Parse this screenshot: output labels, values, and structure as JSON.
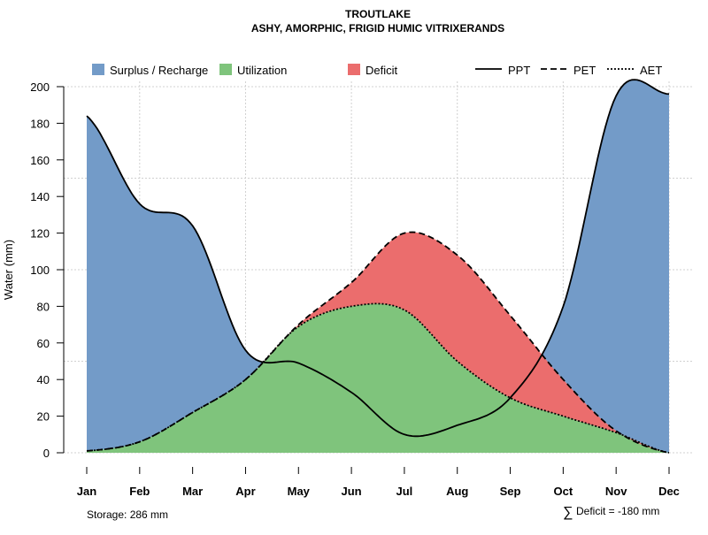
{
  "chart_data": {
    "type": "area",
    "title": "TROUTLAKE",
    "subtitle": "ASHY, AMORPHIC, FRIGID HUMIC VITRIXERANDS",
    "xlabel": "",
    "ylabel": "Water (mm)",
    "ylim": [
      0,
      200
    ],
    "yticks": [
      0,
      20,
      40,
      60,
      80,
      100,
      120,
      140,
      160,
      180,
      200
    ],
    "grid": true,
    "categories": [
      "Jan",
      "Feb",
      "Mar",
      "Apr",
      "May",
      "Jun",
      "Jul",
      "Aug",
      "Sep",
      "Oct",
      "Nov",
      "Dec"
    ],
    "series": [
      {
        "name": "PPT",
        "style": "solid",
        "values": [
          184,
          136,
          124,
          56,
          49,
          33,
          10,
          15,
          30,
          80,
          195,
          196
        ]
      },
      {
        "name": "PET",
        "style": "dashed",
        "values": [
          1,
          6,
          22,
          40,
          70,
          93,
          120,
          108,
          75,
          40,
          12,
          0
        ]
      },
      {
        "name": "AET",
        "style": "dotted",
        "values": [
          1,
          6,
          22,
          40,
          69,
          80,
          78,
          50,
          30,
          20,
          11,
          0
        ]
      }
    ],
    "legend": {
      "placement": "top",
      "fills": [
        {
          "label": "Surplus / Recharge",
          "color": "#739BC8"
        },
        {
          "label": "Utilization",
          "color": "#7FC47C"
        },
        {
          "label": "Deficit",
          "color": "#EB6D6D"
        }
      ],
      "lines": [
        {
          "label": "PPT",
          "dash": "solid"
        },
        {
          "label": "PET",
          "dash": "dashed"
        },
        {
          "label": "AET",
          "dash": "dotted"
        }
      ]
    },
    "annotations": {
      "storage": "Storage: 286 mm",
      "deficit_symbol": "∑",
      "deficit": "Deficit = -180 mm"
    }
  }
}
